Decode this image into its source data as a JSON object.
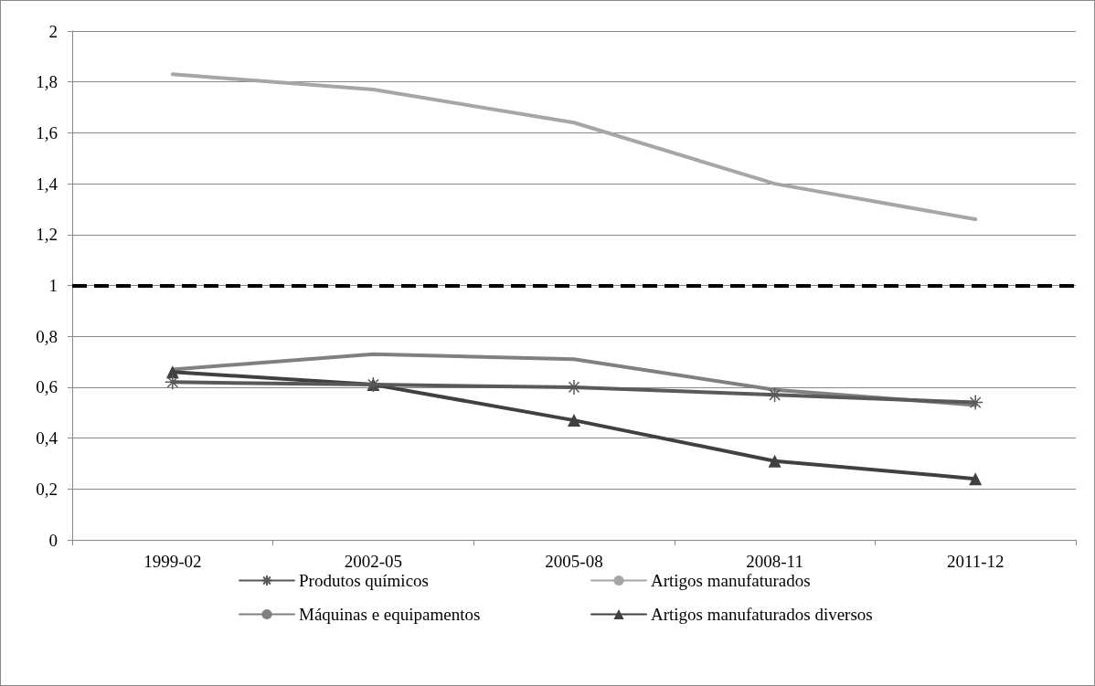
{
  "chart_data": {
    "type": "line",
    "categories": [
      "1999-02",
      "2002-05",
      "2005-08",
      "2008-11",
      "2011-12"
    ],
    "series": [
      {
        "name": "Produtos químicos",
        "color": "#595959",
        "marker": "cross",
        "values": [
          0.62,
          0.61,
          0.6,
          0.57,
          0.54
        ]
      },
      {
        "name": "Artigos manufaturados",
        "color": "#a6a6a6",
        "marker": "none",
        "values": [
          1.83,
          1.77,
          1.64,
          1.4,
          1.26
        ]
      },
      {
        "name": "Máquinas e equipamentos",
        "color": "#808080",
        "marker": "none",
        "values": [
          0.67,
          0.73,
          0.71,
          0.59,
          0.53
        ]
      },
      {
        "name": "Artigos manufaturados diversos",
        "color": "#404040",
        "marker": "triangle",
        "values": [
          0.66,
          0.61,
          0.47,
          0.31,
          0.24
        ]
      }
    ],
    "ylim": [
      0,
      2
    ],
    "yticks": [
      0,
      {
        "value": 0.2,
        "label": "0,2"
      },
      {
        "value": 0.4,
        "label": "0,4"
      },
      {
        "value": 0.6,
        "label": "0,6"
      },
      {
        "value": 0.8,
        "label": "0,8"
      },
      1,
      {
        "value": 1.2,
        "label": "1,2"
      },
      {
        "value": 1.4,
        "label": "1,4"
      },
      {
        "value": 1.6,
        "label": "1,6"
      },
      {
        "value": 1.8,
        "label": "1,8"
      },
      2
    ],
    "ref_lines": [
      {
        "axis": "y",
        "value": 1,
        "color": "#000000",
        "line_style": "dashed"
      }
    ],
    "grid": "y",
    "legend": "bottom",
    "line_style": "solid"
  }
}
